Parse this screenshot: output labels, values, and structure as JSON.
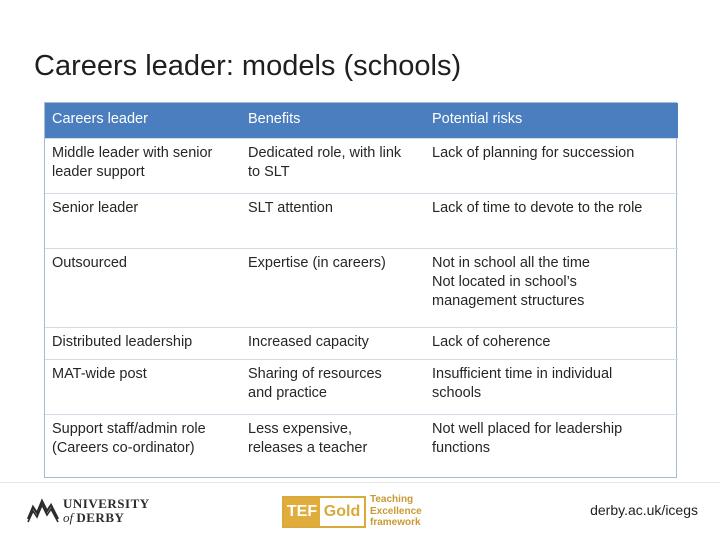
{
  "slide": {
    "title": "Careers leader: models (schools)"
  },
  "table": {
    "headers": [
      "Careers leader",
      "Benefits",
      "Potential risks"
    ],
    "rows": [
      {
        "model": [
          "Middle leader with senior",
          "leader support"
        ],
        "benefits": [
          "Dedicated role, with link",
          "to SLT"
        ],
        "risks": [
          "Lack of planning for succession"
        ]
      },
      {
        "model": [
          "Senior leader"
        ],
        "benefits": [
          "SLT attention"
        ],
        "risks": [
          "Lack of time to devote to the role"
        ]
      },
      {
        "model": [
          "Outsourced"
        ],
        "benefits": [
          "Expertise (in careers)"
        ],
        "risks": [
          "Not in school all the time",
          "Not located in school’s",
          "management structures"
        ]
      },
      {
        "model": [
          "Distributed leadership"
        ],
        "benefits": [
          "Increased capacity"
        ],
        "risks": [
          "Lack of coherence"
        ]
      },
      {
        "model": [
          "MAT-wide post"
        ],
        "benefits": [
          "Sharing of resources",
          "and practice"
        ],
        "risks": [
          "Insufficient time in individual",
          "schools"
        ]
      },
      {
        "model": [
          "Support staff/admin role",
          "(Careers co-ordinator)"
        ],
        "benefits": [
          "Less expensive,",
          "releases a teacher"
        ],
        "risks": [
          "Not well placed for leadership",
          "functions"
        ]
      }
    ]
  },
  "footer": {
    "university_logo": {
      "line1": "UNIVERSITY",
      "line2_prefix": "of",
      "line2_name": "DERBY",
      "icon": "derby-skyline-logo-icon"
    },
    "tef_logo": {
      "box_left": "TEF",
      "box_right": "Gold",
      "words": [
        "Teaching",
        "Excellence",
        "framework"
      ],
      "color": "#d9a93a"
    },
    "url": "derby.ac.uk/icegs"
  },
  "colors": {
    "header_bg": "#4a7ebf",
    "header_text": "#ffffff",
    "border": "#a9b9d4"
  }
}
